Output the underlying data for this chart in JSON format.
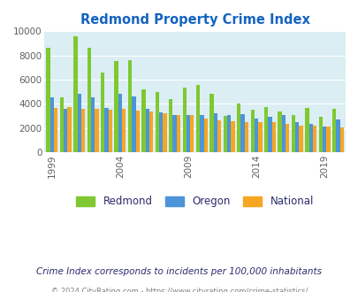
{
  "title": "Redmond Property Crime Index",
  "subtitle": "Crime Index corresponds to incidents per 100,000 inhabitants",
  "footer": "© 2024 CityRating.com - https://www.cityrating.com/crime-statistics/",
  "years": [
    1999,
    2000,
    2001,
    2002,
    2003,
    2004,
    2005,
    2006,
    2007,
    2008,
    2009,
    2010,
    2011,
    2012,
    2013,
    2014,
    2015,
    2016,
    2017,
    2018,
    2019,
    2020
  ],
  "redmond": [
    8600,
    4500,
    9550,
    8600,
    6600,
    7500,
    7600,
    5200,
    4950,
    4350,
    5350,
    5550,
    4800,
    3000,
    4000,
    3500,
    3700,
    3350,
    3100,
    3650,
    2950,
    3550
  ],
  "oregon": [
    4500,
    3600,
    4800,
    4550,
    3650,
    4800,
    4600,
    3550,
    3300,
    3050,
    3050,
    3050,
    3250,
    3100,
    3150,
    2800,
    2950,
    3050,
    2450,
    2350,
    2150,
    2700
  ],
  "national": [
    3650,
    3700,
    3600,
    3600,
    3500,
    3550,
    3400,
    3350,
    3200,
    3050,
    3050,
    2800,
    2650,
    2550,
    2500,
    2450,
    2450,
    2300,
    2200,
    2200,
    2100,
    2050
  ],
  "ylim": [
    0,
    10000
  ],
  "yticks": [
    0,
    2000,
    4000,
    6000,
    8000,
    10000
  ],
  "xtick_positions": [
    0,
    5,
    10,
    15,
    20
  ],
  "xtick_labels": [
    "1999",
    "2004",
    "2009",
    "2014",
    "2019"
  ],
  "color_redmond": "#7fc832",
  "color_oregon": "#4d94d8",
  "color_national": "#f5a623",
  "bg_color": "#daeef3",
  "title_color": "#1464c0",
  "subtitle_color": "#2c2c6e",
  "footer_color": "#808080",
  "bar_width": 0.28
}
